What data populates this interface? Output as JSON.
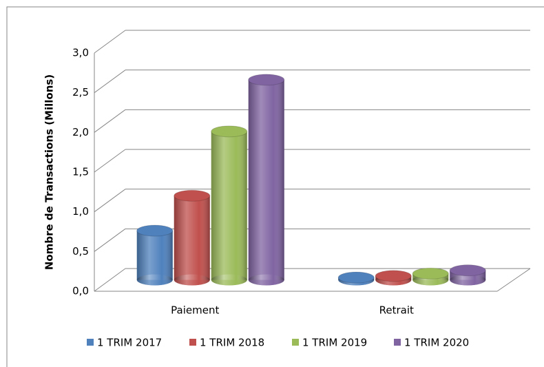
{
  "chart_data": {
    "type": "bar3d",
    "y_axis_label": "Nombre de Transactions (Millons)",
    "categories": [
      "Paiement",
      "Retrait"
    ],
    "series": [
      {
        "name": "1 TRIM 2017",
        "color": "#4f81bd",
        "values": [
          0.62,
          0.03
        ]
      },
      {
        "name": "1 TRIM 2018",
        "color": "#c0504d",
        "values": [
          1.06,
          0.05
        ]
      },
      {
        "name": "1 TRIM 2019",
        "color": "#9bbb59",
        "values": [
          1.87,
          0.08
        ]
      },
      {
        "name": "1 TRIM 2020",
        "color": "#8064a2",
        "values": [
          2.52,
          0.12
        ]
      }
    ],
    "ylim": [
      0,
      3
    ],
    "yticks": [
      {
        "value": 0,
        "label": "0,0"
      },
      {
        "value": 0.5,
        "label": "0,5"
      },
      {
        "value": 1,
        "label": "1,0"
      },
      {
        "value": 1.5,
        "label": "1,5"
      },
      {
        "value": 2,
        "label": "2,0"
      },
      {
        "value": 2.5,
        "label": "2,5"
      },
      {
        "value": 3,
        "label": "3,0"
      }
    ],
    "grid": true
  }
}
